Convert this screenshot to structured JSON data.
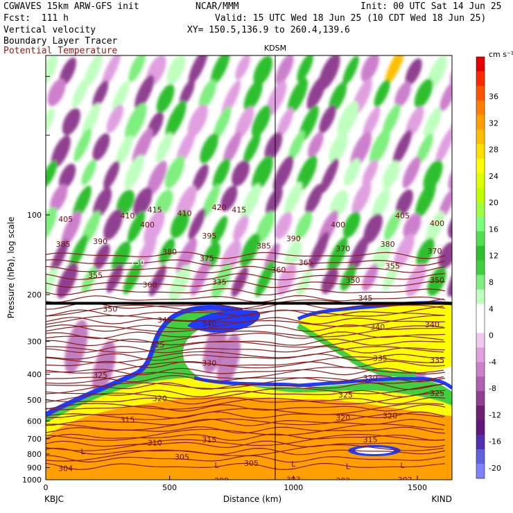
{
  "header": {
    "model": "CGWAVES 15km ARW-GFS init",
    "org": "NCAR/MMM",
    "init": "Init: 00 UTC Sat 14 Jun 25",
    "fcst": "Fcst:  111 h",
    "valid": "Valid: 15 UTC Wed 18 Jun 25 (10 CDT Wed 18 Jun 25)",
    "field1": "Vertical velocity",
    "xy": "XY= 150.5,136.9 to 260.4,139.6",
    "field2": "Boundary Layer Tracer",
    "field3": "Potential Temperature",
    "field3_color": "#8b1a1a"
  },
  "chart_data": {
    "type": "cross-section",
    "station_marker": "KDSM",
    "ylabel": "Pressure (hPa), log scale",
    "xlabel": "Distance (km)",
    "x_ticks": [
      "0",
      "500",
      "1000",
      "1500"
    ],
    "x_endpoints": {
      "left": "KBJC",
      "right": "KIND"
    },
    "xlim": [
      0,
      1640
    ],
    "y_ticks": [
      "100",
      "200",
      "300",
      "400",
      "500",
      "600",
      "700",
      "800",
      "900",
      "1000"
    ],
    "y_log": true,
    "ylim": [
      1000,
      25
    ],
    "colorbar": {
      "unit": "cm s⁻¹",
      "labels": [
        "36",
        "32",
        "28",
        "24",
        "20",
        "16",
        "12",
        "8",
        "4",
        "0",
        "-4",
        "-8",
        "-12",
        "-16",
        "-20"
      ],
      "colors": [
        "#e60000",
        "#ff2a00",
        "#ff5500",
        "#ff7f00",
        "#ff9f00",
        "#ffbf00",
        "#ffdf00",
        "#ffff00",
        "#dfff00",
        "#bfff00",
        "#9fff3f",
        "#7fff7f",
        "#4fdf4f",
        "#2fbf2f",
        "#3fcf3f",
        "#7fef7f",
        "#bfffbf",
        "#ffffff",
        "#ffffff",
        "#f0c8f0",
        "#e0a0e0",
        "#cc80cc",
        "#b060b0",
        "#904090",
        "#702070",
        "#601880",
        "#5030b0",
        "#6060e0",
        "#8080ff"
      ]
    },
    "theta_labels": [
      {
        "value": "405",
        "x": 80,
        "p": 103
      },
      {
        "value": "410",
        "x": 330,
        "p": 100
      },
      {
        "value": "415",
        "x": 440,
        "p": 95
      },
      {
        "value": "410",
        "x": 560,
        "p": 98
      },
      {
        "value": "420",
        "x": 700,
        "p": 93
      },
      {
        "value": "415",
        "x": 780,
        "p": 95
      },
      {
        "value": "405",
        "x": 1440,
        "p": 100
      },
      {
        "value": "400",
        "x": 410,
        "p": 108
      },
      {
        "value": "400",
        "x": 1180,
        "p": 108
      },
      {
        "value": "400",
        "x": 1580,
        "p": 107
      },
      {
        "value": "385",
        "x": 70,
        "p": 128
      },
      {
        "value": "390",
        "x": 220,
        "p": 125
      },
      {
        "value": "395",
        "x": 660,
        "p": 119
      },
      {
        "value": "390",
        "x": 1000,
        "p": 122
      },
      {
        "value": "380",
        "x": 500,
        "p": 137
      },
      {
        "value": "385",
        "x": 880,
        "p": 130
      },
      {
        "value": "380",
        "x": 1380,
        "p": 128
      },
      {
        "value": "370",
        "x": 1200,
        "p": 133
      },
      {
        "value": "370",
        "x": 1570,
        "p": 136
      },
      {
        "value": "375",
        "x": 650,
        "p": 145
      },
      {
        "value": "365",
        "x": 1050,
        "p": 150
      },
      {
        "value": "360",
        "x": 940,
        "p": 160
      },
      {
        "value": "355",
        "x": 1400,
        "p": 155
      },
      {
        "value": "355",
        "x": 200,
        "p": 168
      },
      {
        "value": "360",
        "x": 420,
        "p": 182
      },
      {
        "value": "335",
        "x": 700,
        "p": 178
      },
      {
        "value": "350",
        "x": 1240,
        "p": 175
      },
      {
        "value": "350",
        "x": 1580,
        "p": 175
      },
      {
        "value": "345",
        "x": 1290,
        "p": 205
      },
      {
        "value": "350",
        "x": 260,
        "p": 225
      },
      {
        "value": "345",
        "x": 480,
        "p": 248
      },
      {
        "value": "340",
        "x": 660,
        "p": 255
      },
      {
        "value": "340",
        "x": 1340,
        "p": 263
      },
      {
        "value": "340",
        "x": 1560,
        "p": 258
      },
      {
        "value": "325",
        "x": 450,
        "p": 307
      },
      {
        "value": "330",
        "x": 660,
        "p": 360
      },
      {
        "value": "335",
        "x": 1350,
        "p": 345
      },
      {
        "value": "335",
        "x": 1580,
        "p": 350
      },
      {
        "value": "325",
        "x": 220,
        "p": 400
      },
      {
        "value": "330",
        "x": 1310,
        "p": 410
      },
      {
        "value": "320",
        "x": 460,
        "p": 490
      },
      {
        "value": "325",
        "x": 1210,
        "p": 475
      },
      {
        "value": "325",
        "x": 1580,
        "p": 468
      },
      {
        "value": "315",
        "x": 330,
        "p": 590
      },
      {
        "value": "320",
        "x": 1200,
        "p": 580
      },
      {
        "value": "320",
        "x": 1390,
        "p": 570
      },
      {
        "value": "310",
        "x": 440,
        "p": 720
      },
      {
        "value": "315",
        "x": 660,
        "p": 700
      },
      {
        "value": "315",
        "x": 1310,
        "p": 700
      },
      {
        "value": "305",
        "x": 550,
        "p": 815
      },
      {
        "value": "305",
        "x": 830,
        "p": 860
      },
      {
        "value": "304",
        "x": 80,
        "p": 900
      },
      {
        "value": "299",
        "x": 710,
        "p": 1000
      },
      {
        "value": "303",
        "x": 1000,
        "p": 990
      },
      {
        "value": "302",
        "x": 1200,
        "p": 1000
      },
      {
        "value": "302",
        "x": 1450,
        "p": 995
      }
    ],
    "tropo_label": {
      "value": "150",
      "x": 370,
      "p": 152
    },
    "l_markers": [
      {
        "x": 150,
        "p": 780
      },
      {
        "x": 690,
        "p": 880
      },
      {
        "x": 1000,
        "p": 870
      },
      {
        "x": 1220,
        "p": 890
      },
      {
        "x": 1440,
        "p": 880
      }
    ]
  }
}
